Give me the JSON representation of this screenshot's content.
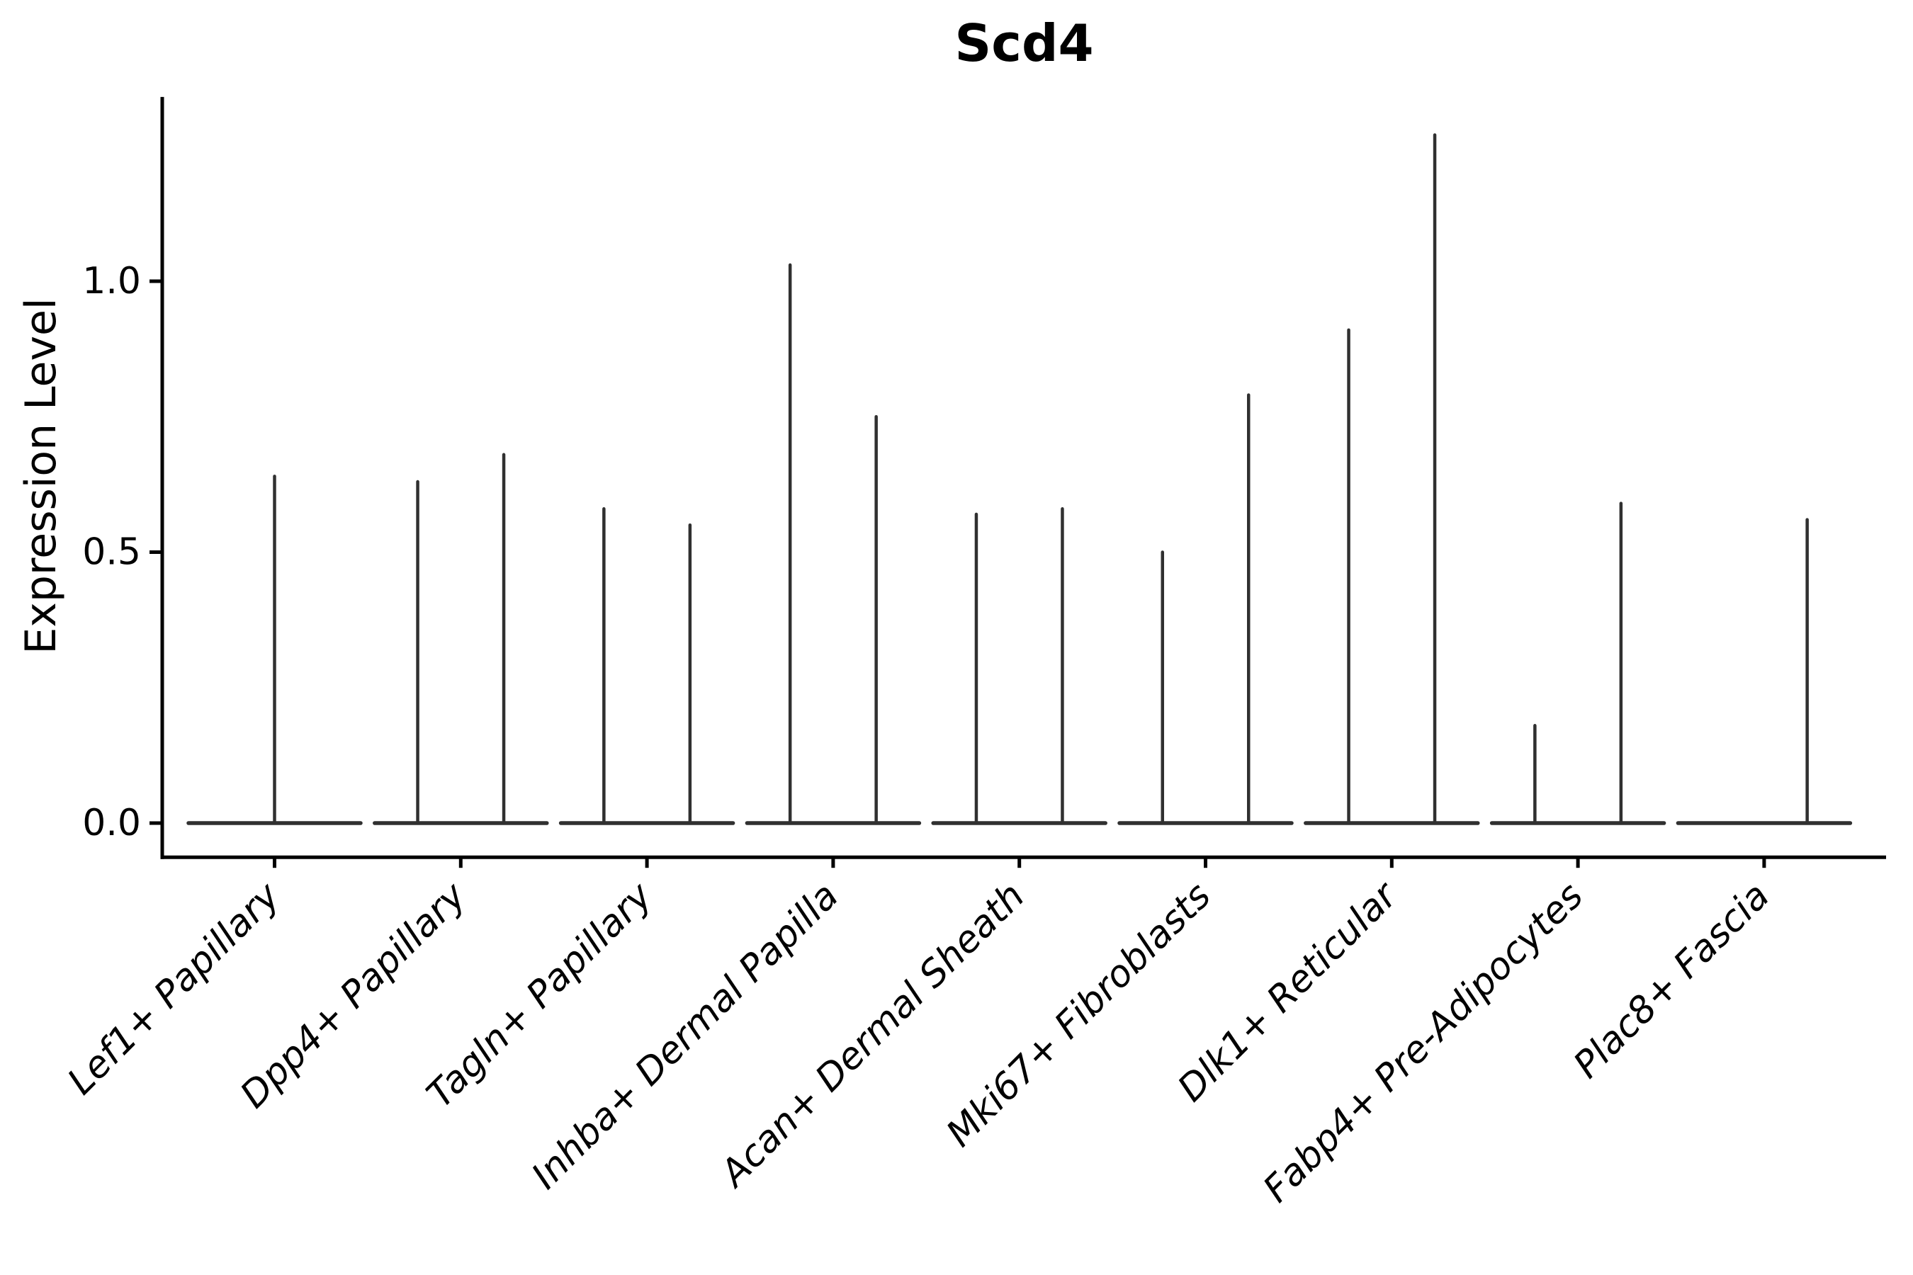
{
  "chart_data": {
    "type": "violin",
    "title": "Scd4",
    "ylabel": "Expression Level",
    "xlabel": "",
    "yticks": [
      {
        "value": 0.0,
        "label": "0.0"
      },
      {
        "value": 0.5,
        "label": "0.5"
      },
      {
        "value": 1.0,
        "label": "1.0"
      }
    ],
    "ylim": [
      -0.063,
      1.34
    ],
    "categories": [
      "Lef1+ Papillary",
      "Dpp4+ Papillary",
      "Tagln+ Papillary",
      "Inhba+ Dermal Papilla",
      "Acan+ Dermal Sheath",
      "Mki67+ Fibroblasts",
      "Dlk1+ Reticular",
      "Fabp4+ Pre-Adipocytes",
      "Plac8+ Fascia"
    ],
    "groups": [
      {
        "category": "Lef1+ Papillary",
        "violins": [
          {
            "position": "center",
            "max_expression": 0.64
          }
        ]
      },
      {
        "category": "Dpp4+ Papillary",
        "violins": [
          {
            "position": "left",
            "max_expression": 0.63
          },
          {
            "position": "right",
            "max_expression": 0.68
          }
        ]
      },
      {
        "category": "Tagln+ Papillary",
        "violins": [
          {
            "position": "left",
            "max_expression": 0.58
          },
          {
            "position": "right",
            "max_expression": 0.55
          }
        ]
      },
      {
        "category": "Inhba+ Dermal Papilla",
        "violins": [
          {
            "position": "left",
            "max_expression": 1.03
          },
          {
            "position": "right",
            "max_expression": 0.75
          }
        ]
      },
      {
        "category": "Acan+ Dermal Sheath",
        "violins": [
          {
            "position": "left",
            "max_expression": 0.57
          },
          {
            "position": "right",
            "max_expression": 0.58
          }
        ]
      },
      {
        "category": "Mki67+ Fibroblasts",
        "violins": [
          {
            "position": "left",
            "max_expression": 0.5
          },
          {
            "position": "right",
            "max_expression": 0.79
          }
        ]
      },
      {
        "category": "Dlk1+ Reticular",
        "violins": [
          {
            "position": "left",
            "max_expression": 0.91
          },
          {
            "position": "right",
            "max_expression": 1.27
          }
        ]
      },
      {
        "category": "Fabp4+ Pre-Adipocytes",
        "violins": [
          {
            "position": "left",
            "max_expression": 0.18
          },
          {
            "position": "right",
            "max_expression": 0.59
          }
        ]
      },
      {
        "category": "Plac8+ Fascia",
        "violins": [
          {
            "position": "left",
            "max_expression": 0.0
          },
          {
            "position": "right",
            "max_expression": 0.56
          }
        ]
      }
    ],
    "colors": {
      "violin_line": "#303030",
      "axis": "#000000",
      "text": "#000000",
      "background": "#ffffff"
    },
    "layout_hints": {
      "grid": false,
      "legend": "none",
      "x_tick_rotation_deg": 45,
      "x_tick_style": "italic",
      "spines": "left-and-bottom-only"
    }
  }
}
